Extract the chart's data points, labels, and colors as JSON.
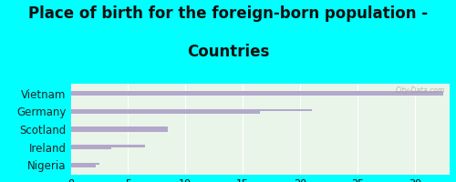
{
  "title_line1": "Place of birth for the foreign-born population -",
  "title_line2": "Countries",
  "categories": [
    "Vietnam",
    "Germany",
    "Scotland",
    "Ireland",
    "Nigeria"
  ],
  "values_top": [
    32.5,
    21.0,
    8.5,
    6.5,
    2.5
  ],
  "values_bottom": [
    32.5,
    16.5,
    8.5,
    3.5,
    2.2
  ],
  "bar_color": "#b3a8cc",
  "bg_color": "#00ffff",
  "chart_bg": "#e8f5e8",
  "xlim": [
    0,
    33
  ],
  "xticks": [
    0,
    5,
    10,
    15,
    20,
    25,
    30
  ],
  "title_fontsize": 12,
  "label_fontsize": 8.5,
  "tick_fontsize": 8,
  "watermark": "City-Data.com"
}
